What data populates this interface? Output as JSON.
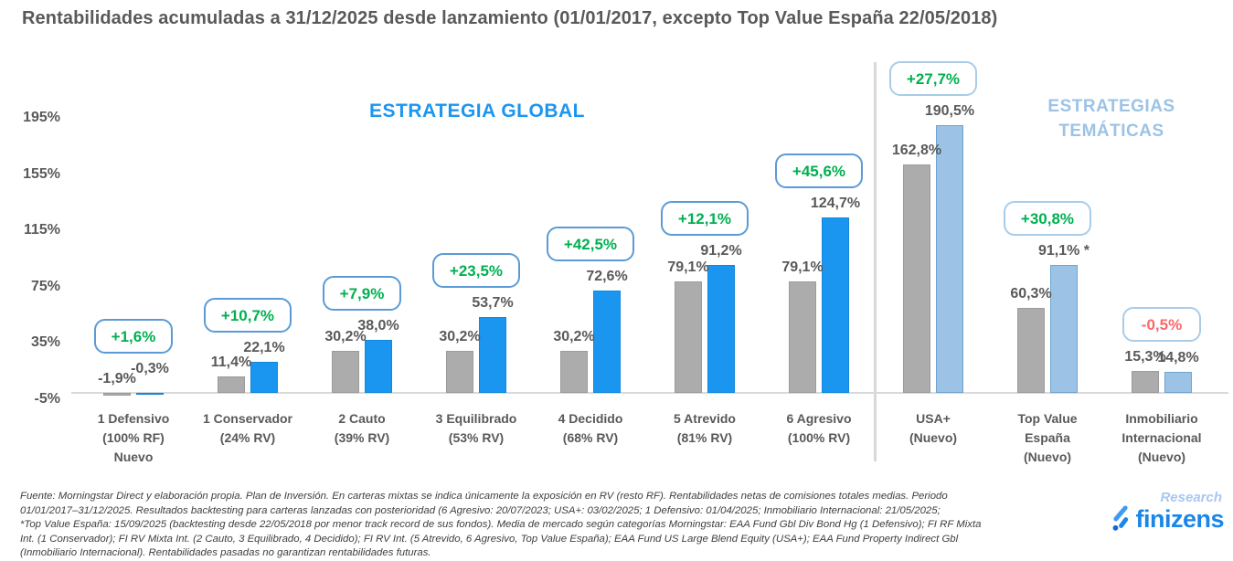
{
  "title": "Rentabilidades acumuladas a 31/12/2025 desde lanzamiento (01/01/2017, excepto Top Value España 22/05/2018)",
  "sections": {
    "global": {
      "header": "ESTRATEGIA GLOBAL"
    },
    "tematicas": {
      "header_line1": "ESTRATEGIAS",
      "header_line2": "TEMÁTICAS"
    }
  },
  "chart_data": {
    "type": "bar",
    "title": "Rentabilidades acumuladas a 31/12/2025 desde lanzamiento",
    "ylim": [
      -5,
      215
    ],
    "grid": false,
    "legend": "none",
    "yticks": [
      {
        "label": "195%",
        "value": 195
      },
      {
        "label": "155%",
        "value": 155
      },
      {
        "label": "115%",
        "value": 115
      },
      {
        "label": "75%",
        "value": 75
      },
      {
        "label": "35%",
        "value": 35
      },
      {
        "label": "-5%",
        "value": -5
      }
    ],
    "categories": [
      "1 Defensivo (100% RF) Nuevo",
      "1 Conservador (24% RV)",
      "2 Cauto (39% RV)",
      "3 Equilibrado (53% RV)",
      "4 Decidido (68% RV)",
      "5 Atrevido (81% RV)",
      "6 Agresivo (100% RV)",
      "USA+ (Nuevo)",
      "Top Value España (Nuevo)",
      "Inmobiliario Internacional (Nuevo)"
    ],
    "series": [
      {
        "name": "Media de mercado (barras grises)",
        "values": [
          -1.9,
          11.4,
          30.2,
          30.2,
          30.2,
          79.1,
          79.1,
          162.8,
          60.3,
          15.3
        ]
      },
      {
        "name": "Finizens (barras azules)",
        "values": [
          -0.3,
          22.1,
          38.0,
          53.7,
          72.6,
          91.2,
          124.7,
          190.5,
          91.1,
          14.8
        ]
      }
    ],
    "groups": [
      {
        "section": "global",
        "category_lines": [
          "1 Defensivo",
          "(100% RF)",
          "Nuevo"
        ],
        "market_value": -1.9,
        "finizens_value": -0.3,
        "market_label": "-1,9%",
        "finizens_label": "-0,3%",
        "diff_label": "+1,6%",
        "diff_positive": true
      },
      {
        "section": "global",
        "category_lines": [
          "1 Conservador",
          "(24% RV)"
        ],
        "market_value": 11.4,
        "finizens_value": 22.1,
        "market_label": "11,4%",
        "finizens_label": "22,1%",
        "diff_label": "+10,7%",
        "diff_positive": true
      },
      {
        "section": "global",
        "category_lines": [
          "2 Cauto",
          "(39% RV)"
        ],
        "market_value": 30.2,
        "finizens_value": 38.0,
        "market_label": "30,2%",
        "finizens_label": "38,0%",
        "diff_label": "+7,9%",
        "diff_positive": true
      },
      {
        "section": "global",
        "category_lines": [
          "3 Equilibrado",
          "(53% RV)"
        ],
        "market_value": 30.2,
        "finizens_value": 53.7,
        "market_label": "30,2%",
        "finizens_label": "53,7%",
        "diff_label": "+23,5%",
        "diff_positive": true
      },
      {
        "section": "global",
        "category_lines": [
          "4 Decidido",
          "(68% RV)"
        ],
        "market_value": 30.2,
        "finizens_value": 72.6,
        "market_label": "30,2%",
        "finizens_label": "72,6%",
        "diff_label": "+42,5%",
        "diff_positive": true
      },
      {
        "section": "global",
        "category_lines": [
          "5 Atrevido",
          "(81% RV)"
        ],
        "market_value": 79.1,
        "finizens_value": 91.2,
        "market_label": "79,1%",
        "finizens_label": "91,2%",
        "diff_label": "+12,1%",
        "diff_positive": true
      },
      {
        "section": "global",
        "category_lines": [
          "6 Agresivo",
          "(100% RV)"
        ],
        "market_value": 79.1,
        "finizens_value": 124.7,
        "market_label": "79,1%",
        "finizens_label": "124,7%",
        "diff_label": "+45,6%",
        "diff_positive": true
      },
      {
        "section": "tematicas",
        "category_lines": [
          "USA+",
          "(Nuevo)"
        ],
        "market_value": 162.8,
        "finizens_value": 190.5,
        "market_label": "162,8%",
        "finizens_label": "190,5%",
        "diff_label": "+27,7%",
        "diff_positive": true
      },
      {
        "section": "tematicas",
        "category_lines": [
          "Top Value",
          "España",
          "(Nuevo)"
        ],
        "market_value": 60.3,
        "finizens_value": 91.1,
        "market_label": "60,3%",
        "finizens_label": "91,1% *",
        "diff_label": "+30,8%",
        "diff_positive": true
      },
      {
        "section": "tematicas",
        "category_lines": [
          "Inmobiliario",
          "Internacional",
          "(Nuevo)"
        ],
        "market_value": 15.3,
        "finizens_value": 14.8,
        "market_label": "15,3%",
        "finizens_label": "14,8%",
        "diff_label": "-0,5%",
        "diff_positive": false
      }
    ]
  },
  "colors": {
    "bar_gray": "#ACACAC",
    "bar_gray_border": "#9B9B9B",
    "bar_blue": "#1B96F0",
    "bar_blue_border": "#1187DC",
    "bar_lightblue": "#9CC3E5",
    "bar_lightblue_border": "#6FA3CF",
    "badge_border_global": "#5B9BD5",
    "badge_border_tematicas": "#A9CCE9",
    "diff_green": "#00B050",
    "diff_red": "#F8696B",
    "header_global": "#1B96F0",
    "header_tematicas": "#9CC3E5",
    "text_dark": "#595959",
    "axis_gray": "#D9D9D9",
    "brand_blue": "#1A86E8",
    "research_blue": "#A9C7F2"
  },
  "footer": {
    "lines": [
      "Fuente: Morningstar Direct y elaboración propia. Plan de Inversión. En carteras mixtas se indica únicamente la exposición en RV (resto RF). Rentabilidades netas de comisiones totales medias. Periodo",
      "01/01/2017–31/12/2025. Resultados backtesting para carteras lanzadas con posterioridad (6 Agresivo: 20/07/2023; USA+: 03/02/2025; 1 Defensivo: 01/04/2025; Inmobiliario Internacional: 21/05/2025;",
      "*Top Value España: 15/09/2025 (backtesting desde 22/05/2018 por menor track record de sus fondos). Media de mercado según categorías Morningstar: EAA Fund Gbl Div Bond Hg (1 Defensivo); FI RF Mixta",
      "Int. (1 Conservador); FI RV Mixta Int. (2 Cauto, 3 Equilibrado, 4 Decidido); FI RV Int. (5 Atrevido, 6 Agresivo, Top Value España); EAA Fund US Large Blend Equity (USA+); EAA Fund Property Indirect Gbl",
      "(Inmobiliario Internacional). Rentabilidades pasadas no garantizan rentabilidades futuras."
    ]
  },
  "logo": {
    "brand": "finizens",
    "sub": "Research"
  }
}
